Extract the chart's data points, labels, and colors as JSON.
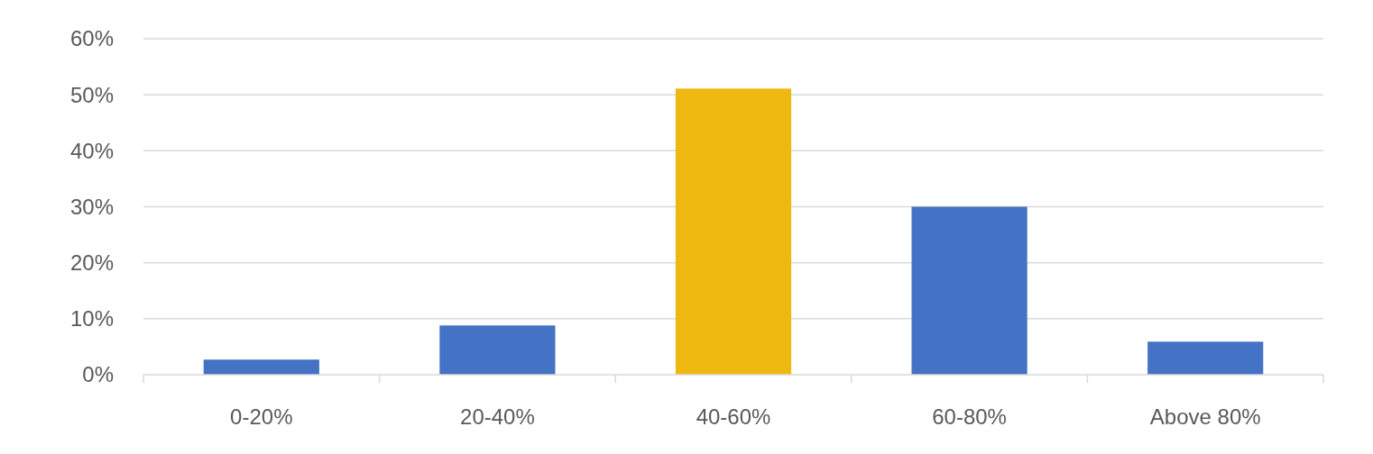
{
  "chart_data": {
    "type": "bar",
    "categories": [
      "0-20%",
      "20-40%",
      "40-60%",
      "60-80%",
      "Above 80%"
    ],
    "values": [
      2.7,
      8.8,
      51.1,
      30,
      5.9
    ],
    "colors": [
      "#4472c4",
      "#4472c4",
      "#efb810",
      "#4472c4",
      "#4472c4"
    ],
    "ylim": [
      0,
      60
    ],
    "yticks": [
      {
        "value": 0,
        "label": "0%"
      },
      {
        "value": 10,
        "label": "10%"
      },
      {
        "value": 20,
        "label": "20%"
      },
      {
        "value": 30,
        "label": "30%"
      },
      {
        "value": 40,
        "label": "40%"
      },
      {
        "value": 50,
        "label": "50%"
      },
      {
        "value": 60,
        "label": "60%"
      }
    ],
    "grid": "y"
  }
}
